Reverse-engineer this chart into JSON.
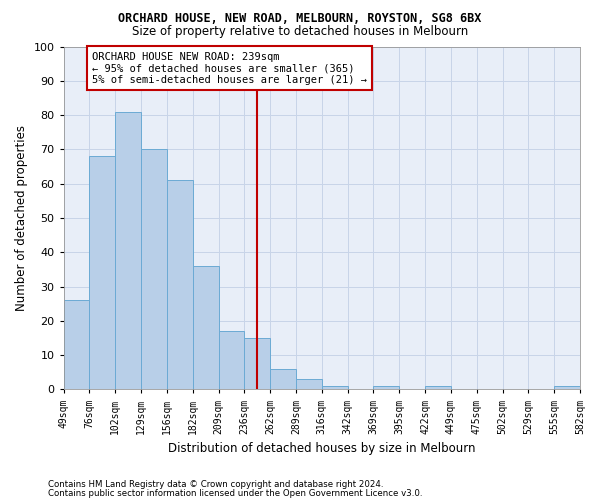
{
  "title": "ORCHARD HOUSE, NEW ROAD, MELBOURN, ROYSTON, SG8 6BX",
  "subtitle": "Size of property relative to detached houses in Melbourn",
  "xlabel": "Distribution of detached houses by size in Melbourn",
  "ylabel": "Number of detached properties",
  "bar_values": [
    26,
    68,
    81,
    70,
    61,
    36,
    17,
    15,
    6,
    3,
    1,
    0,
    1,
    0,
    1,
    0,
    0,
    0,
    0,
    1
  ],
  "bar_labels": [
    "49sqm",
    "76sqm",
    "102sqm",
    "129sqm",
    "156sqm",
    "182sqm",
    "209sqm",
    "236sqm",
    "262sqm",
    "289sqm",
    "316sqm",
    "342sqm",
    "369sqm",
    "395sqm",
    "422sqm",
    "449sqm",
    "475sqm",
    "502sqm",
    "529sqm",
    "555sqm",
    "582sqm"
  ],
  "bar_color": "#b8cfe8",
  "bar_edge_color": "#6baad4",
  "vline_x": 7.5,
  "vline_color": "#c00000",
  "annotation_text_line1": "ORCHARD HOUSE NEW ROAD: 239sqm",
  "annotation_text_line2": "← 95% of detached houses are smaller (365)",
  "annotation_text_line3": "5% of semi-detached houses are larger (21) →",
  "annotation_box_color": "#c00000",
  "ylim": [
    0,
    100
  ],
  "yticks": [
    0,
    10,
    20,
    30,
    40,
    50,
    60,
    70,
    80,
    90,
    100
  ],
  "grid_color": "#c8d4e8",
  "bg_color": "#e8eef8",
  "footer_line1": "Contains HM Land Registry data © Crown copyright and database right 2024.",
  "footer_line2": "Contains public sector information licensed under the Open Government Licence v3.0."
}
